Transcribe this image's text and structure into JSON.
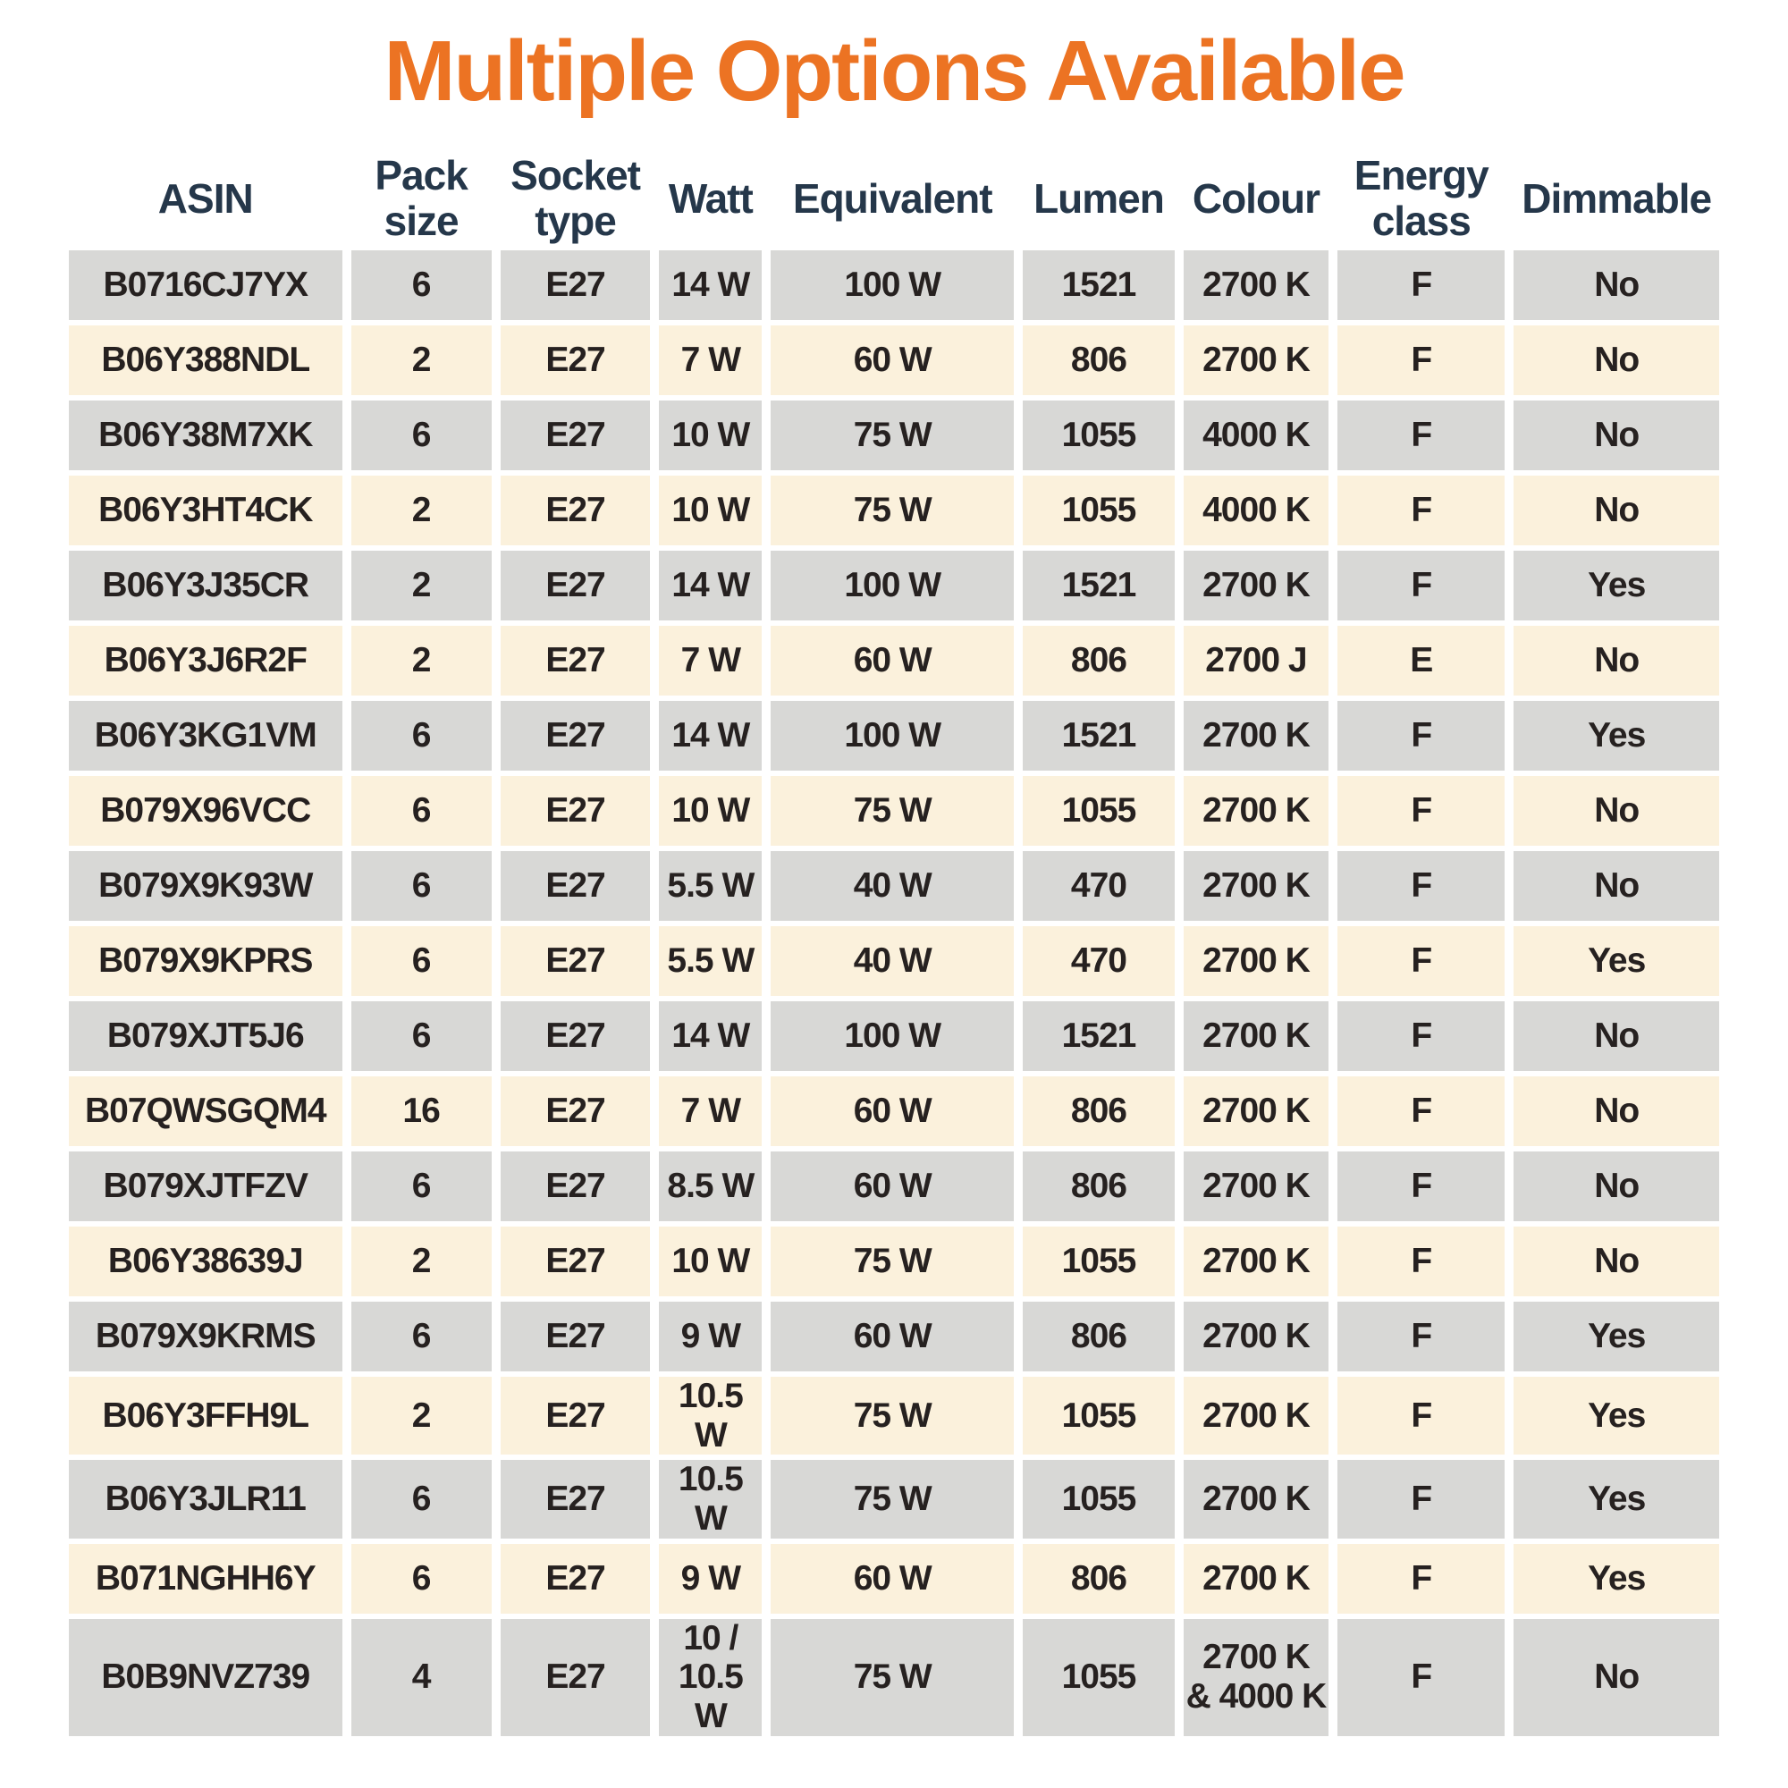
{
  "page": {
    "title": "Multiple Options Available"
  },
  "colors": {
    "title_orange": "#EC7323",
    "header_text": "#25374A",
    "cell_text": "#262120",
    "row_grey": "#D8D8D6",
    "row_cream": "#FBF1DC",
    "background": "#FFFFFF"
  },
  "chart_data": {
    "type": "table",
    "title": "Multiple Options Available",
    "columns": [
      "ASIN",
      "Pack\nsize",
      "Socket\ntype",
      "Watt",
      "Equivalent",
      "Lumen",
      "Colour",
      "Energy\nclass",
      "Dimmable"
    ],
    "rows": [
      {
        "asin": "B0716CJ7YX",
        "pack_size": "6",
        "socket_type": "E27",
        "watt": "14 W",
        "equivalent": "100 W",
        "lumen": "1521",
        "colour": "2700 K",
        "energy_class": "F",
        "dimmable": "No"
      },
      {
        "asin": "B06Y388NDL",
        "pack_size": "2",
        "socket_type": "E27",
        "watt": "7 W",
        "equivalent": "60 W",
        "lumen": "806",
        "colour": "2700 K",
        "energy_class": "F",
        "dimmable": "No"
      },
      {
        "asin": "B06Y38M7XK",
        "pack_size": "6",
        "socket_type": "E27",
        "watt": "10 W",
        "equivalent": "75 W",
        "lumen": "1055",
        "colour": "4000 K",
        "energy_class": "F",
        "dimmable": "No"
      },
      {
        "asin": "B06Y3HT4CK",
        "pack_size": "2",
        "socket_type": "E27",
        "watt": "10 W",
        "equivalent": "75 W",
        "lumen": "1055",
        "colour": "4000 K",
        "energy_class": "F",
        "dimmable": "No"
      },
      {
        "asin": "B06Y3J35CR",
        "pack_size": "2",
        "socket_type": "E27",
        "watt": "14 W",
        "equivalent": "100 W",
        "lumen": "1521",
        "colour": "2700 K",
        "energy_class": "F",
        "dimmable": "Yes"
      },
      {
        "asin": "B06Y3J6R2F",
        "pack_size": "2",
        "socket_type": "E27",
        "watt": "7 W",
        "equivalent": "60 W",
        "lumen": "806",
        "colour": "2700 J",
        "energy_class": "E",
        "dimmable": "No"
      },
      {
        "asin": "B06Y3KG1VM",
        "pack_size": "6",
        "socket_type": "E27",
        "watt": "14 W",
        "equivalent": "100 W",
        "lumen": "1521",
        "colour": "2700 K",
        "energy_class": "F",
        "dimmable": "Yes"
      },
      {
        "asin": "B079X96VCC",
        "pack_size": "6",
        "socket_type": "E27",
        "watt": "10 W",
        "equivalent": "75 W",
        "lumen": "1055",
        "colour": "2700 K",
        "energy_class": "F",
        "dimmable": "No"
      },
      {
        "asin": "B079X9K93W",
        "pack_size": "6",
        "socket_type": "E27",
        "watt": "5.5 W",
        "equivalent": "40 W",
        "lumen": "470",
        "colour": "2700 K",
        "energy_class": "F",
        "dimmable": "No"
      },
      {
        "asin": "B079X9KPRS",
        "pack_size": "6",
        "socket_type": "E27",
        "watt": "5.5 W",
        "equivalent": "40 W",
        "lumen": "470",
        "colour": "2700 K",
        "energy_class": "F",
        "dimmable": "Yes"
      },
      {
        "asin": "B079XJT5J6",
        "pack_size": "6",
        "socket_type": "E27",
        "watt": "14 W",
        "equivalent": "100 W",
        "lumen": "1521",
        "colour": "2700 K",
        "energy_class": "F",
        "dimmable": "No"
      },
      {
        "asin": "B07QWSGQM4",
        "pack_size": "16",
        "socket_type": "E27",
        "watt": "7 W",
        "equivalent": "60 W",
        "lumen": "806",
        "colour": "2700 K",
        "energy_class": "F",
        "dimmable": "No"
      },
      {
        "asin": "B079XJTFZV",
        "pack_size": "6",
        "socket_type": "E27",
        "watt": "8.5 W",
        "equivalent": "60 W",
        "lumen": "806",
        "colour": "2700 K",
        "energy_class": "F",
        "dimmable": "No"
      },
      {
        "asin": "B06Y38639J",
        "pack_size": "2",
        "socket_type": "E27",
        "watt": "10 W",
        "equivalent": "75 W",
        "lumen": "1055",
        "colour": "2700 K",
        "energy_class": "F",
        "dimmable": "No"
      },
      {
        "asin": "B079X9KRMS",
        "pack_size": "6",
        "socket_type": "E27",
        "watt": "9 W",
        "equivalent": "60 W",
        "lumen": "806",
        "colour": "2700 K",
        "energy_class": "F",
        "dimmable": "Yes"
      },
      {
        "asin": "B06Y3FFH9L",
        "pack_size": "2",
        "socket_type": "E27",
        "watt": "10.5 W",
        "equivalent": "75 W",
        "lumen": "1055",
        "colour": "2700 K",
        "energy_class": "F",
        "dimmable": "Yes"
      },
      {
        "asin": "B06Y3JLR11",
        "pack_size": "6",
        "socket_type": "E27",
        "watt": "10.5 W",
        "equivalent": "75 W",
        "lumen": "1055",
        "colour": "2700 K",
        "energy_class": "F",
        "dimmable": "Yes"
      },
      {
        "asin": "B071NGHH6Y",
        "pack_size": "6",
        "socket_type": "E27",
        "watt": "9 W",
        "equivalent": "60 W",
        "lumen": "806",
        "colour": "2700 K",
        "energy_class": "F",
        "dimmable": "Yes"
      },
      {
        "asin": "B0B9NVZ739",
        "pack_size": "4",
        "socket_type": "E27",
        "watt": "10 /\n10.5 W",
        "equivalent": "75 W",
        "lumen": "1055",
        "colour": "2700 K\n& 4000 K",
        "energy_class": "F",
        "dimmable": "No"
      }
    ]
  }
}
